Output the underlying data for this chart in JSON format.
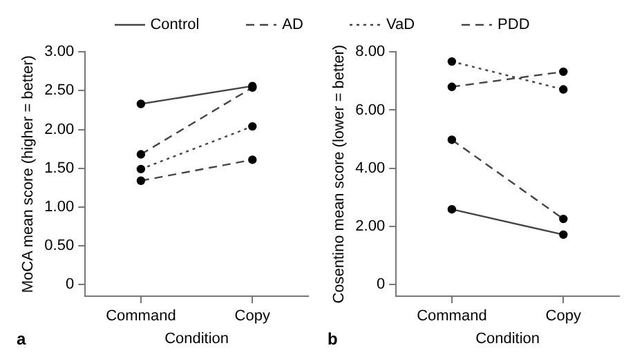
{
  "chart_data": [
    {
      "type": "line",
      "categories": [
        "Command",
        "Copy"
      ],
      "xlabel": "Condition",
      "ylabel": "MoCA mean score (higher = better)",
      "ylim": [
        -0.15,
        3
      ],
      "yticks": [
        0,
        {
          "value": 0.5,
          "label": "0.50"
        },
        {
          "value": 1,
          "label": "1.00"
        },
        {
          "value": 1.5,
          "label": "1.50"
        },
        {
          "value": 2,
          "label": "2.00"
        },
        {
          "value": 2.5,
          "label": "2.50"
        },
        {
          "value": 3,
          "label": "3.00"
        }
      ],
      "grid": false,
      "legend": "top",
      "marker": "circle",
      "annotations": [
        "a"
      ],
      "series": [
        {
          "name": "Control",
          "color": "#444444",
          "line_style": "solid",
          "values": [
            2.33,
            2.56
          ]
        },
        {
          "name": "AD",
          "color": "#444444",
          "line_style": "dashed",
          "values": [
            1.68,
            2.54
          ]
        },
        {
          "name": "VaD",
          "color": "#444444",
          "line_style": "dotted",
          "values": [
            1.49,
            2.04
          ]
        },
        {
          "name": "PDD",
          "color": "#444444",
          "line_style": "dashed",
          "values": [
            1.34,
            1.61
          ]
        }
      ]
    },
    {
      "type": "line",
      "categories": [
        "Command",
        "Copy"
      ],
      "xlabel": "Condition",
      "ylabel": "Cosentino mean score (lower = better)",
      "ylim": [
        -0.4,
        8
      ],
      "yticks": [
        0,
        {
          "value": 2,
          "label": "2.00"
        },
        {
          "value": 4,
          "label": "4.00"
        },
        {
          "value": 6,
          "label": "6.00"
        },
        {
          "value": 8,
          "label": "8.00"
        }
      ],
      "grid": false,
      "marker": "circle",
      "annotations": [
        "b"
      ],
      "series": [
        {
          "color": "#444444",
          "line_style": "solid",
          "values": [
            2.59,
            1.72
          ]
        },
        {
          "color": "#444444",
          "line_style": "dashed",
          "values": [
            4.98,
            2.26
          ]
        },
        {
          "color": "#444444",
          "line_style": "dotted",
          "values": [
            7.67,
            6.71
          ]
        },
        {
          "color": "#444444",
          "line_style": "dashed",
          "values": [
            6.8,
            7.32
          ]
        }
      ]
    }
  ]
}
